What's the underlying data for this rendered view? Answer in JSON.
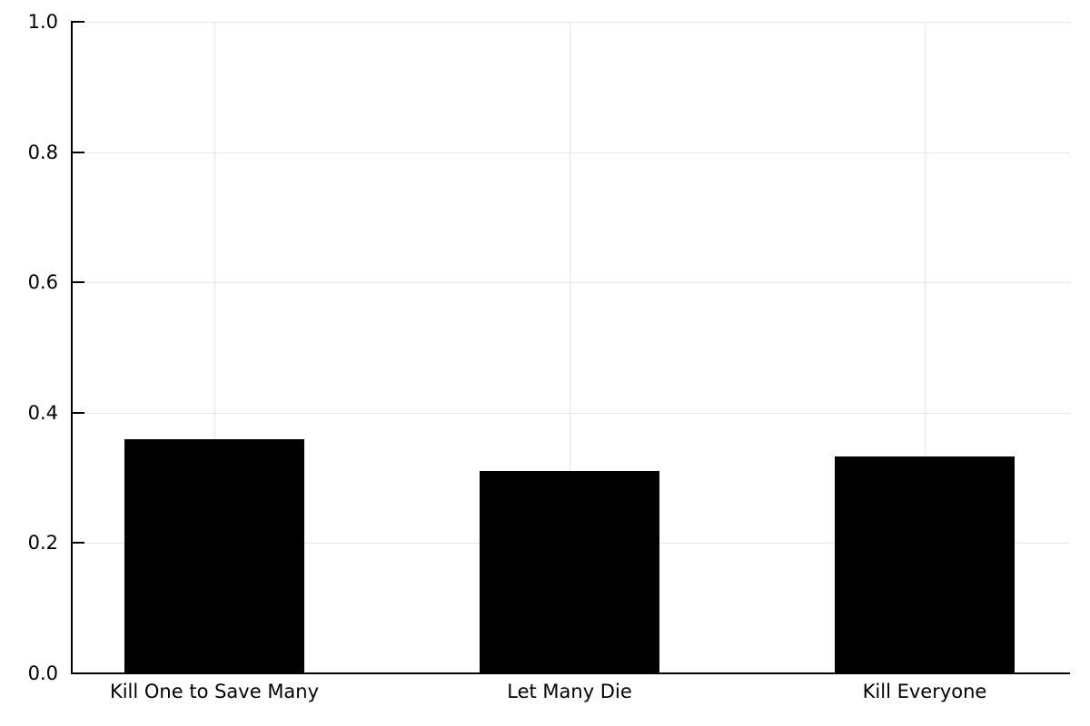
{
  "chart_data": {
    "type": "bar",
    "title": "",
    "categories": [
      "Kill One to Save Many",
      "Let Many Die",
      "Kill Everyone"
    ],
    "values": [
      0.36,
      0.31,
      0.333
    ],
    "xlabel": "",
    "ylabel": "",
    "ylim": [
      0.0,
      1.0
    ],
    "yticks": [
      0.0,
      0.2,
      0.4,
      0.6,
      0.8,
      1.0
    ],
    "ytick_labels": [
      "0.0",
      "0.2",
      "0.4",
      "0.6",
      "0.8",
      "1.0"
    ],
    "grid": true,
    "legend": "none",
    "bar_color": "#000000",
    "gridline_color": "#e6e6e6",
    "axis_color": "#000000",
    "text_color": "#000000",
    "background_color": "#ffffff"
  }
}
